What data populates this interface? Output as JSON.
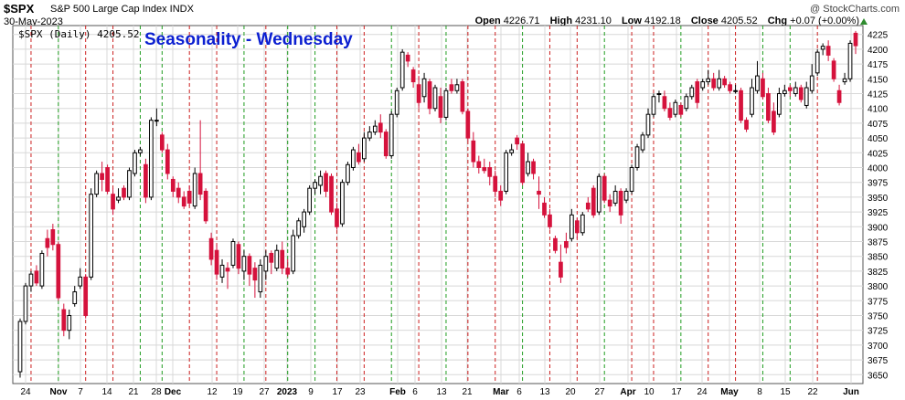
{
  "header": {
    "symbol": "$SPX",
    "description": "S&P 500 Large Cap Index  INDX",
    "date": "30-May-2023",
    "credit": "@ StockCharts.com",
    "open_label": "Open",
    "open": "4226.71",
    "high_label": "High",
    "high": "4231.10",
    "low_label": "Low",
    "low": "4192.18",
    "close_label": "Close",
    "close": "4205.52",
    "chg_label": "Chg",
    "chg": "+0.07 (+0.00%)"
  },
  "legend": "$SPX (Daily) 4205.52",
  "overlay_title": "Seasonality - Wednesday",
  "colors": {
    "up": "#000000",
    "down": "#d5123c",
    "red_line": "#cc2020",
    "green_line": "#1f9c1f",
    "grid": "#d8d8d8",
    "title": "#0b1fd1",
    "chg_up": "#2e8b2e"
  },
  "chart_data": {
    "type": "candlestick",
    "title": "Seasonality - Wednesday",
    "y_ticks": [
      3650,
      3675,
      3700,
      3725,
      3750,
      3775,
      3800,
      3825,
      3850,
      3875,
      3900,
      3925,
      3950,
      3975,
      4000,
      4025,
      4050,
      4075,
      4100,
      4125,
      4150,
      4175,
      4200,
      4225
    ],
    "ylim": [
      3635,
      4240
    ],
    "x_tick_labels": [
      {
        "label": "24",
        "bold": false
      },
      {
        "label": "Nov",
        "bold": true
      },
      {
        "label": "7",
        "bold": false
      },
      {
        "label": "14",
        "bold": false
      },
      {
        "label": "21",
        "bold": false
      },
      {
        "label": "28",
        "bold": false
      },
      {
        "label": "Dec",
        "bold": true
      },
      {
        "label": "12",
        "bold": false
      },
      {
        "label": "19",
        "bold": false
      },
      {
        "label": "27",
        "bold": false
      },
      {
        "label": "2023",
        "bold": true
      },
      {
        "label": "9",
        "bold": false
      },
      {
        "label": "17",
        "bold": false
      },
      {
        "label": "23",
        "bold": false
      },
      {
        "label": "Feb",
        "bold": true
      },
      {
        "label": "6",
        "bold": false
      },
      {
        "label": "13",
        "bold": false
      },
      {
        "label": "21",
        "bold": false
      },
      {
        "label": "Mar",
        "bold": true
      },
      {
        "label": "6",
        "bold": false
      },
      {
        "label": "13",
        "bold": false
      },
      {
        "label": "20",
        "bold": false
      },
      {
        "label": "27",
        "bold": false
      },
      {
        "label": "Apr",
        "bold": true
      },
      {
        "label": "10",
        "bold": false
      },
      {
        "label": "17",
        "bold": false
      },
      {
        "label": "24",
        "bold": false
      },
      {
        "label": "May",
        "bold": true
      },
      {
        "label": "8",
        "bold": false
      },
      {
        "label": "15",
        "bold": false
      },
      {
        "label": "22",
        "bold": false
      },
      {
        "label": "Jun",
        "bold": true
      }
    ],
    "tick_positions": [
      28,
      64,
      88,
      117,
      146,
      171,
      189,
      232,
      260,
      289,
      314,
      340,
      369,
      394,
      435,
      454,
      483,
      511,
      548,
      568,
      596,
      624,
      656,
      687,
      710,
      740,
      768,
      798,
      831,
      859,
      889,
      931
    ],
    "wednesday_lines": [
      {
        "date": "2022-10-26",
        "color": "red"
      },
      {
        "date": "2022-11-02",
        "color": "green"
      },
      {
        "date": "2022-11-09",
        "color": "red"
      },
      {
        "date": "2022-11-16",
        "color": "red"
      },
      {
        "date": "2022-11-23",
        "color": "green"
      },
      {
        "date": "2022-11-30",
        "color": "green"
      },
      {
        "date": "2022-12-07",
        "color": "red"
      },
      {
        "date": "2022-12-14",
        "color": "red"
      },
      {
        "date": "2022-12-21",
        "color": "green"
      },
      {
        "date": "2022-12-28",
        "color": "red"
      },
      {
        "date": "2023-01-04",
        "color": "green"
      },
      {
        "date": "2023-01-11",
        "color": "green"
      },
      {
        "date": "2023-01-18",
        "color": "red"
      },
      {
        "date": "2023-01-25",
        "color": "red"
      },
      {
        "date": "2023-02-01",
        "color": "green"
      },
      {
        "date": "2023-02-08",
        "color": "red"
      },
      {
        "date": "2023-02-15",
        "color": "green"
      },
      {
        "date": "2023-02-22",
        "color": "red"
      },
      {
        "date": "2023-03-01",
        "color": "red"
      },
      {
        "date": "2023-03-08",
        "color": "green"
      },
      {
        "date": "2023-03-15",
        "color": "red"
      },
      {
        "date": "2023-03-22",
        "color": "red"
      },
      {
        "date": "2023-03-29",
        "color": "green"
      },
      {
        "date": "2023-04-05",
        "color": "red"
      },
      {
        "date": "2023-04-12",
        "color": "red"
      },
      {
        "date": "2023-04-19",
        "color": "green"
      },
      {
        "date": "2023-04-26",
        "color": "red"
      },
      {
        "date": "2023-05-03",
        "color": "red"
      },
      {
        "date": "2023-05-10",
        "color": "green"
      },
      {
        "date": "2023-05-17",
        "color": "green"
      },
      {
        "date": "2023-05-24",
        "color": "red"
      }
    ],
    "candles": [
      [
        3655,
        3740,
        3645,
        3745
      ],
      [
        3740,
        3800,
        3735,
        3805
      ],
      [
        3800,
        3820,
        3790,
        3825
      ],
      [
        3825,
        3805,
        3800,
        3835
      ],
      [
        3800,
        3855,
        3795,
        3860
      ],
      [
        3880,
        3865,
        3850,
        3895
      ],
      [
        3895,
        3870,
        3860,
        3905
      ],
      [
        3870,
        3780,
        3775,
        3875
      ],
      [
        3760,
        3725,
        3715,
        3770
      ],
      [
        3725,
        3750,
        3710,
        3760
      ],
      [
        3770,
        3790,
        3765,
        3800
      ],
      [
        3800,
        3815,
        3795,
        3830
      ],
      [
        3815,
        3750,
        3745,
        3820
      ],
      [
        3815,
        3955,
        3810,
        3965
      ],
      [
        3955,
        3990,
        3950,
        3995
      ],
      [
        3990,
        3980,
        3960,
        4010
      ],
      [
        4000,
        3960,
        3955,
        4005
      ],
      [
        3955,
        3930,
        3920,
        3965
      ],
      [
        3945,
        3950,
        3940,
        3965
      ],
      [
        3965,
        3950,
        3945,
        3970
      ],
      [
        3950,
        3995,
        3945,
        4000
      ],
      [
        3990,
        4025,
        3985,
        4030
      ],
      [
        4025,
        4030,
        4020,
        4035
      ],
      [
        4005,
        3950,
        3940,
        4015
      ],
      [
        3950,
        4080,
        3945,
        4085
      ],
      [
        4080,
        4080,
        4070,
        4100
      ],
      [
        4055,
        4030,
        4025,
        4060
      ],
      [
        4030,
        3990,
        3980,
        4040
      ],
      [
        3980,
        3960,
        3950,
        3985
      ],
      [
        3965,
        3950,
        3940,
        3975
      ],
      [
        3950,
        3935,
        3930,
        3960
      ],
      [
        3960,
        3940,
        3935,
        3970
      ],
      [
        3935,
        3990,
        3930,
        4000
      ],
      [
        3990,
        3955,
        3945,
        4080
      ],
      [
        3960,
        3910,
        3905,
        3965
      ],
      [
        3880,
        3845,
        3835,
        3890
      ],
      [
        3860,
        3820,
        3810,
        3870
      ],
      [
        3815,
        3835,
        3805,
        3845
      ],
      [
        3830,
        3825,
        3795,
        3840
      ],
      [
        3835,
        3875,
        3830,
        3880
      ],
      [
        3870,
        3830,
        3820,
        3875
      ],
      [
        3825,
        3850,
        3810,
        3860
      ],
      [
        3850,
        3820,
        3800,
        3855
      ],
      [
        3830,
        3810,
        3780,
        3840
      ],
      [
        3790,
        3835,
        3780,
        3845
      ],
      [
        3825,
        3850,
        3810,
        3860
      ],
      [
        3855,
        3840,
        3820,
        3860
      ],
      [
        3830,
        3860,
        3825,
        3870
      ],
      [
        3860,
        3830,
        3820,
        3875
      ],
      [
        3830,
        3820,
        3815,
        3845
      ],
      [
        3825,
        3885,
        3820,
        3895
      ],
      [
        3885,
        3910,
        3880,
        3915
      ],
      [
        3900,
        3925,
        3890,
        3930
      ],
      [
        3925,
        3965,
        3920,
        3970
      ],
      [
        3965,
        3975,
        3955,
        3980
      ],
      [
        3970,
        3985,
        3955,
        3995
      ],
      [
        3990,
        3960,
        3950,
        3995
      ],
      [
        3985,
        3925,
        3920,
        3990
      ],
      [
        3930,
        3900,
        3895,
        3940
      ],
      [
        3905,
        3975,
        3900,
        3980
      ],
      [
        3975,
        4005,
        3970,
        4010
      ],
      [
        4000,
        4030,
        3995,
        4035
      ],
      [
        4025,
        4010,
        4005,
        4040
      ],
      [
        4015,
        4050,
        4010,
        4060
      ],
      [
        4050,
        4060,
        4045,
        4070
      ],
      [
        4060,
        4070,
        4055,
        4080
      ],
      [
        4075,
        4060,
        4050,
        4090
      ],
      [
        4060,
        4020,
        4015,
        4065
      ],
      [
        4020,
        4090,
        4015,
        4095
      ],
      [
        4090,
        4130,
        4085,
        4135
      ],
      [
        4135,
        4195,
        4130,
        4200
      ],
      [
        4190,
        4180,
        4170,
        4195
      ],
      [
        4165,
        4145,
        4135,
        4170
      ],
      [
        4140,
        4110,
        4100,
        4155
      ],
      [
        4120,
        4150,
        4110,
        4160
      ],
      [
        4145,
        4100,
        4090,
        4150
      ],
      [
        4100,
        4135,
        4095,
        4140
      ],
      [
        4120,
        4085,
        4075,
        4135
      ],
      [
        4085,
        4130,
        4080,
        4135
      ],
      [
        4140,
        4130,
        4125,
        4150
      ],
      [
        4130,
        4140,
        4125,
        4150
      ],
      [
        4145,
        4095,
        4090,
        4150
      ],
      [
        4095,
        4050,
        4045,
        4100
      ],
      [
        4045,
        4010,
        4000,
        4060
      ],
      [
        4010,
        4000,
        3990,
        4020
      ],
      [
        4000,
        3995,
        3990,
        4015
      ],
      [
        4000,
        3985,
        3970,
        4010
      ],
      [
        3985,
        3960,
        3950,
        3995
      ],
      [
        3960,
        3945,
        3935,
        3970
      ],
      [
        3960,
        4025,
        3955,
        4030
      ],
      [
        4025,
        4030,
        4020,
        4040
      ],
      [
        4050,
        4040,
        4030,
        4055
      ],
      [
        4040,
        3975,
        3970,
        4045
      ],
      [
        3990,
        4010,
        3985,
        4025
      ],
      [
        4010,
        3990,
        3980,
        4015
      ],
      [
        3960,
        3955,
        3930,
        3985
      ],
      [
        3940,
        3920,
        3915,
        3950
      ],
      [
        3920,
        3900,
        3895,
        3930
      ],
      [
        3880,
        3860,
        3855,
        3885
      ],
      [
        3840,
        3815,
        3805,
        3870
      ],
      [
        3875,
        3865,
        3855,
        3890
      ],
      [
        3880,
        3920,
        3875,
        3930
      ],
      [
        3910,
        3890,
        3880,
        3915
      ],
      [
        3890,
        3920,
        3885,
        3925
      ],
      [
        3940,
        3930,
        3925,
        3950
      ],
      [
        3965,
        3920,
        3915,
        3970
      ],
      [
        3925,
        3985,
        3920,
        3990
      ],
      [
        3985,
        3945,
        3940,
        3990
      ],
      [
        3945,
        3935,
        3925,
        3955
      ],
      [
        3940,
        3960,
        3935,
        3970
      ],
      [
        3960,
        3920,
        3905,
        3965
      ],
      [
        3945,
        3960,
        3940,
        3965
      ],
      [
        3960,
        4000,
        3955,
        4005
      ],
      [
        4000,
        4035,
        3995,
        4040
      ],
      [
        4030,
        4055,
        4025,
        4060
      ],
      [
        4055,
        4090,
        4050,
        4100
      ],
      [
        4090,
        4120,
        4085,
        4125
      ],
      [
        4125,
        4125,
        4110,
        4130
      ],
      [
        4120,
        4100,
        4095,
        4130
      ],
      [
        4100,
        4085,
        4080,
        4110
      ],
      [
        4090,
        4110,
        4085,
        4115
      ],
      [
        4105,
        4090,
        4085,
        4110
      ],
      [
        4100,
        4120,
        4095,
        4125
      ],
      [
        4120,
        4135,
        4115,
        4140
      ],
      [
        4145,
        4110,
        4100,
        4150
      ],
      [
        4135,
        4145,
        4130,
        4150
      ],
      [
        4145,
        4150,
        4140,
        4165
      ],
      [
        4150,
        4135,
        4130,
        4160
      ],
      [
        4135,
        4150,
        4130,
        4165
      ],
      [
        4150,
        4140,
        4135,
        4155
      ],
      [
        4140,
        4130,
        4125,
        4145
      ],
      [
        4130,
        4130,
        4125,
        4140
      ],
      [
        4130,
        4080,
        4075,
        4135
      ],
      [
        4080,
        4065,
        4060,
        4085
      ],
      [
        4090,
        4135,
        4085,
        4150
      ],
      [
        4130,
        4155,
        4125,
        4180
      ],
      [
        4150,
        4120,
        4115,
        4160
      ],
      [
        4125,
        4080,
        4075,
        4135
      ],
      [
        4095,
        4060,
        4055,
        4110
      ],
      [
        4090,
        4125,
        4085,
        4135
      ],
      [
        4125,
        4130,
        4120,
        4140
      ],
      [
        4135,
        4130,
        4120,
        4140
      ],
      [
        4125,
        4135,
        4120,
        4145
      ],
      [
        4135,
        4115,
        4110,
        4140
      ],
      [
        4105,
        4135,
        4100,
        4145
      ],
      [
        4130,
        4155,
        4125,
        4175
      ],
      [
        4160,
        4195,
        4155,
        4200
      ],
      [
        4200,
        4205,
        4190,
        4210
      ],
      [
        4205,
        4190,
        4180,
        4215
      ],
      [
        4180,
        4150,
        4145,
        4185
      ],
      [
        4130,
        4110,
        4105,
        4140
      ],
      [
        4145,
        4150,
        4140,
        4160
      ],
      [
        4150,
        4210,
        4145,
        4215
      ],
      [
        4227,
        4206,
        4192,
        4231
      ]
    ]
  }
}
